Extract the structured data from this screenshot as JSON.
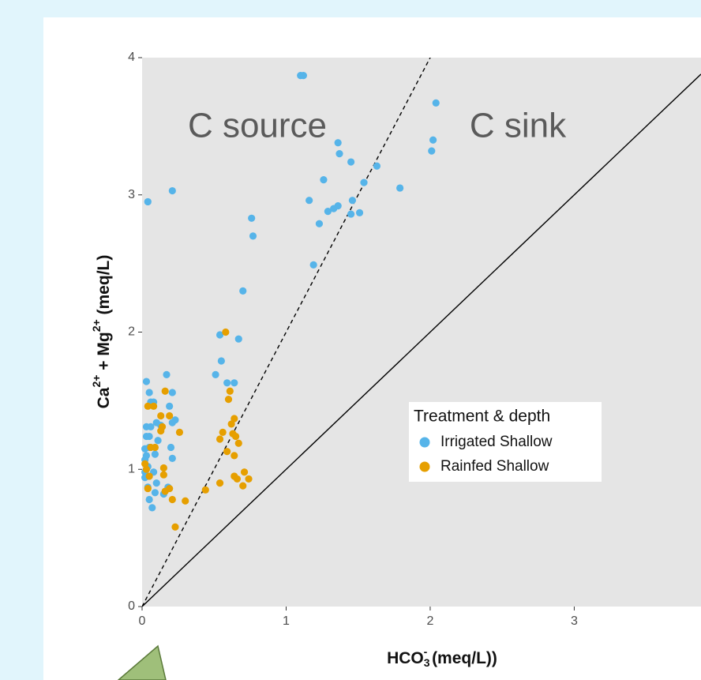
{
  "chart_data": {
    "type": "scatter",
    "x_label_parts": [
      "HCO",
      "3",
      "-",
      " (meq/L))"
    ],
    "y_label_parts": [
      "Ca",
      "2+",
      " + Mg",
      "2+",
      " (meq/L)"
    ],
    "annotations": [
      "C source",
      "C sink"
    ],
    "legend_title": "Treatment & depth",
    "xlim": [
      0,
      3.88
    ],
    "ylim": [
      0,
      4
    ],
    "xticks": [
      0,
      1,
      2,
      3
    ],
    "yticks": [
      0,
      1,
      2,
      3,
      4
    ],
    "reference_lines": [
      {
        "slope": 1,
        "style": "solid"
      },
      {
        "slope": 2,
        "style": "dashed"
      }
    ],
    "series": [
      {
        "name": "Irrigated Shallow",
        "color": "#56b4e9",
        "x": [
          1.1,
          1.12,
          2.04,
          2.02,
          2.01,
          1.36,
          1.37,
          1.45,
          1.63,
          1.54,
          1.79,
          1.26,
          1.16,
          1.46,
          1.29,
          1.33,
          1.36,
          1.51,
          1.45,
          1.23,
          1.19,
          0.21,
          0.04,
          0.76,
          0.77,
          0.7,
          0.54,
          0.67,
          0.55,
          0.51,
          0.59,
          0.64,
          0.17,
          0.03,
          0.05,
          0.21,
          0.19,
          0.06,
          0.08,
          0.1,
          0.23,
          0.21,
          0.03,
          0.06,
          0.13,
          0.03,
          0.05,
          0.11,
          0.2,
          0.02,
          0.05,
          0.09,
          0.03,
          0.02,
          0.21,
          0.04,
          0.02,
          0.02,
          0.08,
          0.1,
          0.04,
          0.09,
          0.18,
          0.05,
          0.07,
          0.15
        ],
        "values": [
          3.87,
          3.87,
          3.67,
          3.4,
          3.32,
          3.38,
          3.3,
          3.24,
          3.21,
          3.09,
          3.05,
          3.11,
          2.96,
          2.96,
          2.88,
          2.9,
          2.92,
          2.87,
          2.86,
          2.79,
          2.49,
          3.03,
          2.95,
          2.83,
          2.7,
          2.3,
          1.98,
          1.95,
          1.79,
          1.69,
          1.63,
          1.63,
          1.69,
          1.64,
          1.56,
          1.56,
          1.46,
          1.49,
          1.49,
          1.34,
          1.36,
          1.34,
          1.31,
          1.31,
          1.32,
          1.24,
          1.24,
          1.21,
          1.16,
          1.15,
          1.16,
          1.11,
          1.1,
          1.07,
          1.08,
          1.02,
          0.98,
          0.94,
          0.98,
          0.9,
          0.87,
          0.83,
          0.87,
          0.78,
          0.72,
          0.82
        ]
      },
      {
        "name": "Rainfed Shallow",
        "color": "#e69f00",
        "x": [
          0.58,
          0.61,
          0.6,
          0.16,
          0.04,
          0.08,
          0.19,
          0.13,
          0.14,
          0.13,
          0.26,
          0.64,
          0.62,
          0.56,
          0.63,
          0.65,
          0.67,
          0.54,
          0.06,
          0.09,
          0.59,
          0.64,
          0.02,
          0.03,
          0.05,
          0.15,
          0.15,
          0.71,
          0.74,
          0.64,
          0.66,
          0.54,
          0.7,
          0.04,
          0.19,
          0.16,
          0.44,
          0.21,
          0.3,
          0.23
        ],
        "values": [
          2.0,
          1.57,
          1.51,
          1.57,
          1.46,
          1.46,
          1.39,
          1.39,
          1.31,
          1.28,
          1.27,
          1.37,
          1.33,
          1.27,
          1.26,
          1.24,
          1.19,
          1.22,
          1.16,
          1.16,
          1.13,
          1.1,
          1.04,
          1.0,
          0.95,
          1.01,
          0.96,
          0.98,
          0.93,
          0.95,
          0.93,
          0.9,
          0.88,
          0.86,
          0.86,
          0.84,
          0.85,
          0.78,
          0.77,
          0.58
        ]
      }
    ]
  }
}
